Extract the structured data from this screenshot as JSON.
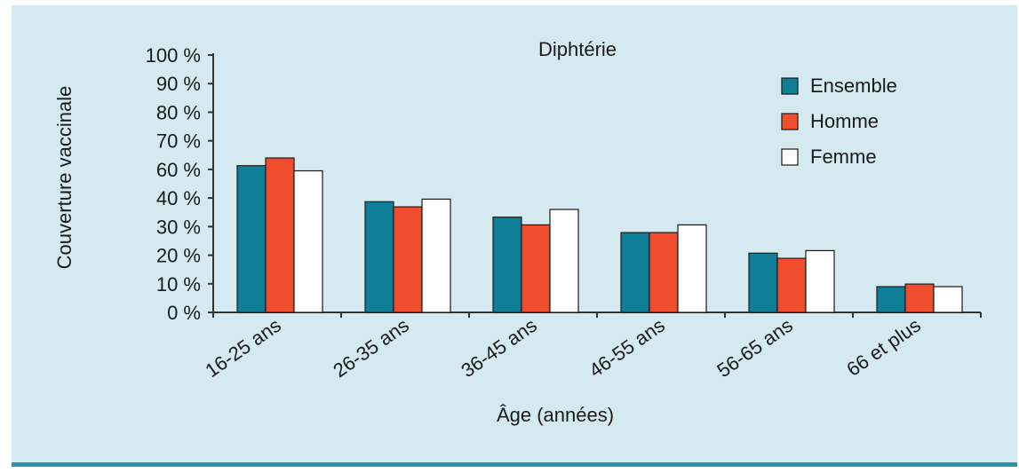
{
  "chart_data": {
    "type": "bar",
    "title": "Diphtérie",
    "xlabel": "Âge (années)",
    "ylabel": "Couverture vaccinale",
    "ylim": [
      0,
      100
    ],
    "yticks": [
      "0 %",
      "10 %",
      "20 %",
      "30 %",
      "40 %",
      "60 %",
      "70 %",
      "80 %",
      "90 %",
      "100 %"
    ],
    "categories": [
      "16-25 ans",
      "26-35 ans",
      "36-45 ans",
      "46-55 ans",
      "56-65 ans",
      "66 et plus"
    ],
    "series": [
      {
        "name": "Ensemble",
        "values": [
          57,
          43,
          37,
          31,
          23,
          10
        ]
      },
      {
        "name": "Homme",
        "values": [
          60,
          41,
          34,
          31,
          21,
          11
        ]
      },
      {
        "name": "Femme",
        "values": [
          55,
          44,
          40,
          34,
          24,
          10
        ]
      }
    ],
    "colors": [
      "#0e7f96",
      "#f04e2f",
      "#ffffff"
    ],
    "legend_position": "top-right",
    "grid": false
  }
}
